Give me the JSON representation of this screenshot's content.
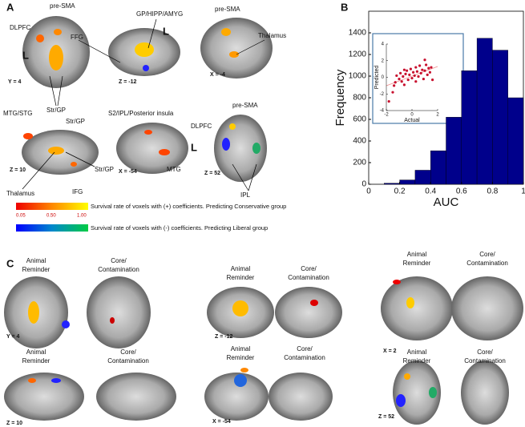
{
  "panel_a": {
    "label": "A",
    "b1": {
      "dlpfc": "DLPFC",
      "presma": "pre-SMA",
      "l": "L",
      "coord": "Y = 4",
      "strgp": "Str/GP"
    },
    "b2": {
      "ffg": "FFG",
      "gp": "GP/HIPP/AMYG",
      "l": "L",
      "coord": "Z = -12"
    },
    "b3": {
      "presma": "pre-SMA",
      "thal": "Thalamus",
      "coord": "X = -4"
    },
    "b4": {
      "mtg": "MTG/STG",
      "strgp": "Str/GP",
      "coord": "Z = 10",
      "thal": "Thalamus",
      "ifg": "IFG",
      "strgp2": "Str/GP"
    },
    "b5": {
      "s2": "S2/IPL/Posterior insula",
      "coord": "X = -54",
      "mtg": "MTG"
    },
    "b6": {
      "presma": "pre-SMA",
      "dlpfc": "DLPFC",
      "l": "L",
      "coord": "Z = 52",
      "ipl": "IPL"
    },
    "colorbar": {
      "ticks": [
        "0.05",
        "0.50",
        "1.00"
      ],
      "pos": "Survival rate of voxels with (+) coefficients. Predicting Conservative group",
      "neg": "Survival rate of voxels with (-) coefficients. Predicting Liberal group"
    }
  },
  "panel_b": {
    "label": "B"
  },
  "panel_c": {
    "label": "C",
    "animal": [
      "Animal",
      "Reminder"
    ],
    "core": [
      "Core/",
      "Contamination"
    ],
    "coords": [
      "Y = 4",
      "Z = -12",
      "X = 2",
      "Z = 10",
      "X = -54",
      "Z = 52"
    ]
  },
  "chart_data": [
    {
      "type": "histogram",
      "xlabel": "AUC",
      "ylabel": "Frequency",
      "color": "#00008b",
      "bins": [
        0.1,
        0.2,
        0.3,
        0.4,
        0.5,
        0.6,
        0.7,
        0.8,
        0.9,
        1.0
      ],
      "values": [
        10,
        40,
        130,
        310,
        620,
        1050,
        1350,
        1240,
        800
      ],
      "xlim": [
        0,
        1
      ],
      "xticks": [
        0,
        0.2,
        0.4,
        0.6,
        0.8,
        1
      ],
      "ylim": [
        0,
        1600
      ],
      "yticks": [
        0,
        200,
        400,
        600,
        800,
        1000,
        1200,
        1400
      ]
    },
    {
      "type": "scatter",
      "xlabel": "Actual",
      "ylabel": "Predicted",
      "color": "#c8102e",
      "x": [
        -1.8,
        -1.5,
        -1.3,
        -1.2,
        -1.0,
        -0.9,
        -0.8,
        -0.7,
        -0.6,
        -0.5,
        -0.4,
        -0.3,
        -0.2,
        -0.1,
        0,
        0.1,
        0.2,
        0.3,
        0.3,
        0.4,
        0.5,
        0.6,
        0.7,
        0.8,
        0.9,
        1.0,
        1.0,
        1.1,
        1.2,
        1.3,
        1.4,
        1.5,
        1.6,
        -1.4,
        -0.6
      ],
      "values": [
        -2.9,
        -1.8,
        -0.6,
        0.2,
        -0.2,
        0.5,
        -0.5,
        0.1,
        -0.9,
        0.4,
        0.8,
        -0.3,
        0.3,
        1.0,
        -0.1,
        0.6,
        0.2,
        1.2,
        -0.5,
        0.7,
        0.1,
        1.4,
        0.5,
        0.9,
        -0.2,
        2.1,
        0.8,
        1.5,
        0.3,
        1.1,
        0.6,
        1.2,
        -0.3,
        -1.0,
        0.9
      ],
      "xlim": [
        -2,
        2
      ],
      "xticks": [
        -2,
        0,
        2
      ],
      "ylim": [
        -4,
        4
      ],
      "yticks": [
        -4,
        -2,
        0,
        2,
        4
      ]
    }
  ]
}
